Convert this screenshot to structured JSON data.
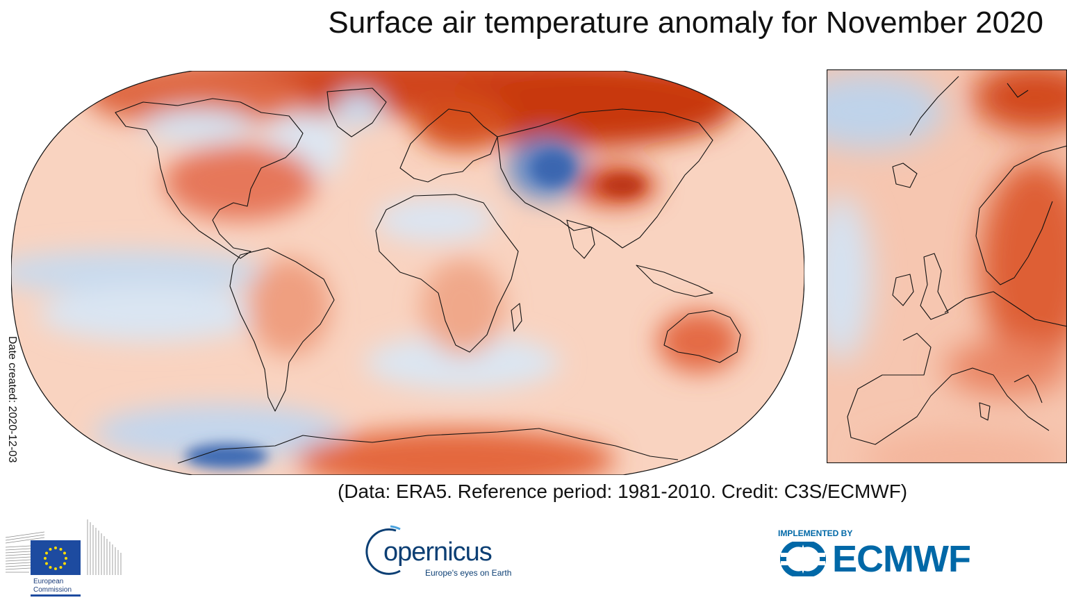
{
  "title": "Surface air temperature anomaly for November 2020",
  "date_created": "Date created: 2020-12-03",
  "credit": "(Data: ERA5.  Reference period: 1981-2010.  Credit: C3S/ECMWF)",
  "colors": {
    "warm_strong": "#c1330f",
    "warm": "#e4714e",
    "warm_light": "#f6c2a8",
    "neutral": "#fbe9e0",
    "cool_light": "#d7e4f2",
    "cool": "#8fb3da",
    "cool_strong": "#3666b0"
  },
  "logos": {
    "eu": {
      "line1": "European",
      "line2": "Commission"
    },
    "copernicus": {
      "word": "opernicus",
      "tagline": "Europe's eyes on Earth"
    },
    "ecmwf": {
      "implemented": "IMPLEMENTED BY",
      "word": "ECMWF"
    }
  }
}
